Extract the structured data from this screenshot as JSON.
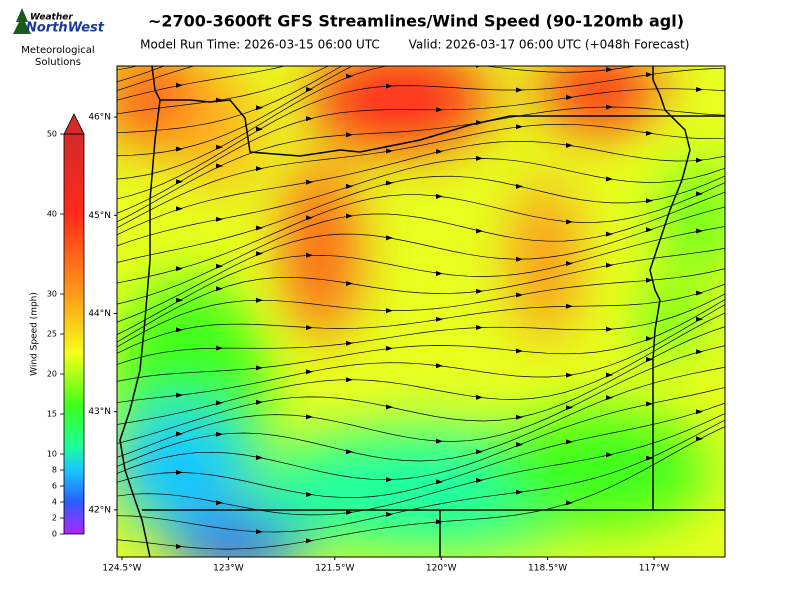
{
  "logo": {
    "line1": "Weather",
    "line2": "NorthWest",
    "caption1": "Meteorological",
    "caption2": "Solutions"
  },
  "title": "~2700-3600ft GFS Streamlines/Wind Speed (90-120mb agl)",
  "model_run": "Model Run Time: 2026-03-15 06:00 UTC",
  "valid": "Valid: 2026-03-17 06:00 UTC  (+048h Forecast)",
  "colorbar": {
    "label": "Wind Speed (mph)",
    "clim": [
      0,
      50
    ],
    "ticks": [
      0,
      2,
      4,
      6,
      8,
      10,
      15,
      20,
      25,
      30,
      40,
      50
    ]
  },
  "map": {
    "xlim": [
      -124.57,
      -116.0
    ],
    "ylim": [
      41.52,
      46.52
    ],
    "xticks": [
      {
        "value": -124.5,
        "label": "124.5°W"
      },
      {
        "value": -123,
        "label": "123°W"
      },
      {
        "value": -121.5,
        "label": "121.5°W"
      },
      {
        "value": -120,
        "label": "120°W"
      },
      {
        "value": -118.5,
        "label": "118.5°W"
      },
      {
        "value": -117,
        "label": "117°W"
      }
    ],
    "yticks": [
      {
        "value": 42,
        "label": "42°N"
      },
      {
        "value": 43,
        "label": "43°N"
      },
      {
        "value": 44,
        "label": "44°N"
      },
      {
        "value": 45,
        "label": "45°N"
      },
      {
        "value": 46,
        "label": "46°N"
      }
    ]
  }
}
